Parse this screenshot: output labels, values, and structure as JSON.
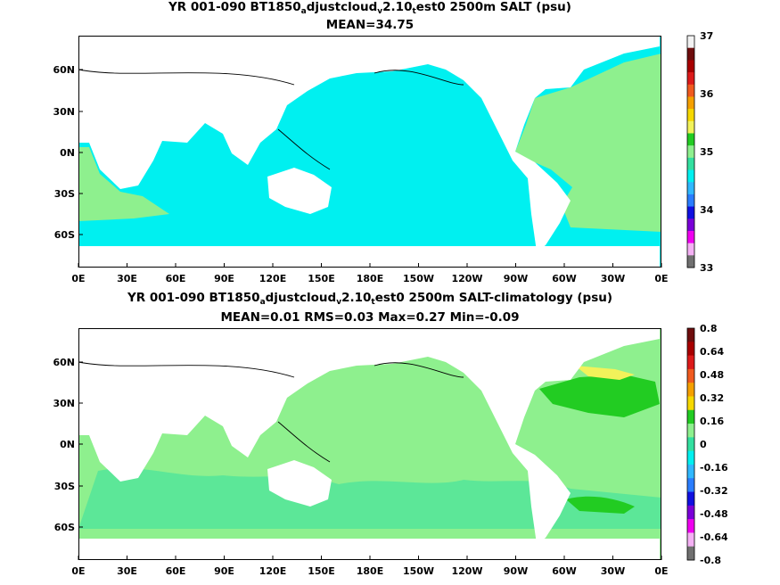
{
  "panels": [
    {
      "title_parts": [
        "YR 001-090 BT1850",
        "a",
        "djustcloud",
        "v",
        "2.10",
        "t",
        "est0 2500m SALT (psu)"
      ],
      "stats": "MEAN=34.75",
      "colorbar": {
        "labels": [
          "37",
          "36",
          "35",
          "34",
          "33"
        ],
        "colors": [
          "#f2f2f2",
          "#6e0d0d",
          "#a80000",
          "#dc1a1a",
          "#f05a1f",
          "#f5a000",
          "#f6d800",
          "#f2f25a",
          "#22cc22",
          "#8ef08e",
          "#33e0a0",
          "#00f0f0",
          "#30b8ff",
          "#2a7dff",
          "#1010e0",
          "#7a00d8",
          "#f000f0",
          "#f4b0f4",
          "#707070"
        ]
      },
      "field_colors": {
        "ocean": "#00f0f0",
        "atlantic": "#8ef08e",
        "land": "#ffffff"
      }
    },
    {
      "title_parts": [
        "YR 001-090 BT1850",
        "a",
        "djustcloud",
        "v",
        "2.10",
        "t",
        "est0 2500m SALT-climatology (psu)"
      ],
      "stats": "MEAN=0.01   RMS=0.03   Max=0.27   Min=-0.09",
      "colorbar": {
        "labels": [
          "0.8",
          "0.64",
          "0.48",
          "0.32",
          "0.16",
          "0",
          "-0.16",
          "-0.32",
          "-0.48",
          "-0.64",
          "-0.8"
        ],
        "colors": [
          "#6e0d0d",
          "#a80000",
          "#dc1a1a",
          "#f05a1f",
          "#f5a000",
          "#f6d800",
          "#22cc22",
          "#8ef08e",
          "#33e0a0",
          "#00f0f0",
          "#30b8ff",
          "#2a7dff",
          "#1010e0",
          "#7a00d8",
          "#f000f0",
          "#f4b0f4",
          "#707070"
        ]
      },
      "field_colors": {
        "ocean": "#8ef08e",
        "anomaly_low": "#33e0a0",
        "anomaly_high": "#22cc22",
        "anomaly_max": "#f2f25a",
        "land": "#ffffff"
      }
    }
  ],
  "lon_ticks": [
    "0E",
    "30E",
    "60E",
    "90E",
    "120E",
    "150E",
    "180E",
    "150W",
    "120W",
    "90W",
    "60W",
    "30W",
    "0E"
  ],
  "lat_ticks": [
    "60N",
    "30N",
    "0N",
    "30S",
    "60S"
  ]
}
